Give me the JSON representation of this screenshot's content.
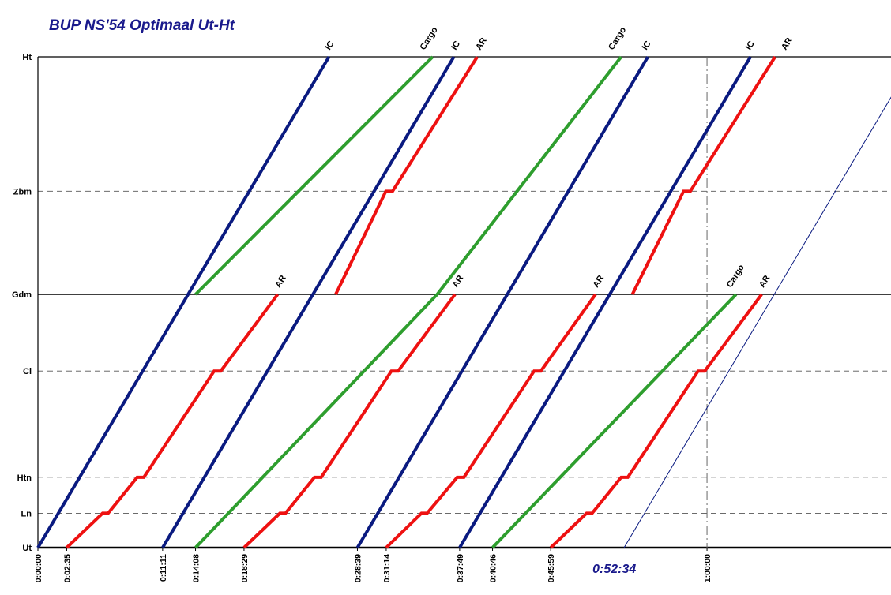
{
  "chart_data": {
    "type": "line",
    "title": "BUP NS'54 Optimaal Ut-Ht",
    "stations": [
      {
        "name": "Ht",
        "km": 0,
        "style": "solid"
      },
      {
        "name": "Zbm",
        "km": 8.6,
        "style": "dashed"
      },
      {
        "name": "Gdm",
        "km": 15.2,
        "style": "solid"
      },
      {
        "name": "Cl",
        "km": 20.1,
        "style": "dashed"
      },
      {
        "name": "Htn",
        "km": 26.9,
        "style": "dashed"
      },
      {
        "name": "Ln",
        "km": 29.2,
        "style": "dashed"
      },
      {
        "name": "Ut",
        "km": 31.4,
        "style": "solid"
      }
    ],
    "x_range_minutes": [
      0,
      76.5
    ],
    "x_ticks": [
      {
        "label": "0:00:00",
        "minutes": 0
      },
      {
        "label": "0:02:35",
        "minutes": 2.583
      },
      {
        "label": "0:11:11",
        "minutes": 11.183
      },
      {
        "label": "0:14:08",
        "minutes": 14.133
      },
      {
        "label": "0:18:29",
        "minutes": 18.483
      },
      {
        "label": "0:28:39",
        "minutes": 28.65
      },
      {
        "label": "0:31:14",
        "minutes": 31.233
      },
      {
        "label": "0:37:49",
        "minutes": 37.817
      },
      {
        "label": "0:40:46",
        "minutes": 40.767
      },
      {
        "label": "0:45:59",
        "minutes": 45.983
      },
      {
        "label": "1:00:00",
        "minutes": 60
      }
    ],
    "highlight_label": "0:52:34",
    "highlight_minutes": 52.567,
    "reference_line_minutes": 60,
    "colors": {
      "IC": "#0a1a80",
      "AR": "#ee1111",
      "Cargo": "#2e9e2e",
      "axis": "#000000",
      "title": "#1a1a8c"
    },
    "series": [
      {
        "name": "IC",
        "kind": "IC",
        "points": [
          [
            0.0,
            "Ut"
          ],
          [
            26.1,
            "Ht"
          ]
        ]
      },
      {
        "name": "IC",
        "kind": "IC",
        "points": [
          [
            11.183,
            "Ut"
          ],
          [
            37.3,
            "Ht"
          ]
        ]
      },
      {
        "name": "IC",
        "kind": "IC",
        "points": [
          [
            28.65,
            "Ut"
          ],
          [
            54.7,
            "Ht"
          ]
        ]
      },
      {
        "name": "IC",
        "kind": "IC",
        "points": [
          [
            37.817,
            "Ut"
          ],
          [
            63.9,
            "Ht"
          ]
        ]
      },
      {
        "name": "IC",
        "kind": "IC-thin",
        "points": [
          [
            52.567,
            "Ut"
          ],
          [
            78.65,
            "Ht"
          ]
        ]
      },
      {
        "name": "AR",
        "kind": "AR",
        "points": [
          [
            2.583,
            "Ut"
          ],
          [
            5.8,
            "Ln"
          ],
          [
            6.3,
            "Ln"
          ],
          [
            8.9,
            "Htn"
          ],
          [
            9.5,
            "Htn"
          ],
          [
            15.8,
            "Cl"
          ],
          [
            16.4,
            "Cl"
          ],
          [
            21.5,
            "Gdm"
          ]
        ]
      },
      {
        "name": "AR",
        "kind": "AR",
        "points": [
          [
            18.483,
            "Ut"
          ],
          [
            21.7,
            "Ln"
          ],
          [
            22.2,
            "Ln"
          ],
          [
            24.8,
            "Htn"
          ],
          [
            25.4,
            "Htn"
          ],
          [
            31.7,
            "Cl"
          ],
          [
            32.3,
            "Cl"
          ],
          [
            37.4,
            "Gdm"
          ]
        ]
      },
      {
        "name": "AR",
        "kind": "AR",
        "points": [
          [
            31.233,
            "Ut"
          ],
          [
            34.4,
            "Ln"
          ],
          [
            34.9,
            "Ln"
          ],
          [
            37.6,
            "Htn"
          ],
          [
            38.2,
            "Htn"
          ],
          [
            44.5,
            "Cl"
          ],
          [
            45.1,
            "Cl"
          ],
          [
            50.0,
            "Gdm"
          ]
        ]
      },
      {
        "name": "AR",
        "kind": "AR",
        "points": [
          [
            45.983,
            "Ut"
          ],
          [
            49.2,
            "Ln"
          ],
          [
            49.7,
            "Ln"
          ],
          [
            52.3,
            "Htn"
          ],
          [
            52.9,
            "Htn"
          ],
          [
            59.2,
            "Cl"
          ],
          [
            59.8,
            "Cl"
          ],
          [
            64.9,
            "Gdm"
          ]
        ]
      },
      {
        "name": "AR",
        "kind": "AR",
        "points": [
          [
            26.7,
            "Gdm"
          ],
          [
            31.2,
            "Zbm"
          ],
          [
            31.8,
            "Zbm"
          ],
          [
            39.4,
            "Ht"
          ]
        ]
      },
      {
        "name": "AR",
        "kind": "AR",
        "points": [
          [
            53.3,
            "Gdm"
          ],
          [
            57.9,
            "Zbm"
          ],
          [
            58.5,
            "Zbm"
          ],
          [
            66.1,
            "Ht"
          ]
        ]
      },
      {
        "name": "Cargo",
        "kind": "Cargo",
        "points": [
          [
            14.133,
            "Gdm"
          ],
          [
            35.4,
            "Ht"
          ]
        ]
      },
      {
        "name": "Cargo",
        "kind": "Cargo",
        "points": [
          [
            14.133,
            "Ut"
          ],
          [
            35.8,
            "Gdm"
          ],
          [
            52.3,
            "Ht"
          ]
        ]
      },
      {
        "name": "Cargo",
        "kind": "Cargo",
        "points": [
          [
            40.767,
            "Ut"
          ],
          [
            62.6,
            "Gdm"
          ]
        ]
      }
    ],
    "labels": [
      {
        "text": "IC",
        "minutes": 26.3,
        "station": "Ht"
      },
      {
        "text": "Cargo",
        "minutes": 34.8,
        "station": "Ht"
      },
      {
        "text": "IC",
        "minutes": 37.6,
        "station": "Ht"
      },
      {
        "text": "AR",
        "minutes": 39.8,
        "station": "Ht"
      },
      {
        "text": "Cargo",
        "minutes": 51.7,
        "station": "Ht"
      },
      {
        "text": "IC",
        "minutes": 54.7,
        "station": "Ht"
      },
      {
        "text": "IC",
        "minutes": 64.0,
        "station": "Ht"
      },
      {
        "text": "AR",
        "minutes": 67.2,
        "station": "Ht"
      },
      {
        "text": "IC",
        "minutes": 78.9,
        "station": "Ht"
      },
      {
        "text": "AR",
        "minutes": 21.8,
        "station": "Gdm"
      },
      {
        "text": "AR",
        "minutes": 37.7,
        "station": "Gdm"
      },
      {
        "text": "AR",
        "minutes": 50.3,
        "station": "Gdm"
      },
      {
        "text": "Cargo",
        "minutes": 62.3,
        "station": "Gdm"
      },
      {
        "text": "AR",
        "minutes": 65.2,
        "station": "Gdm"
      }
    ],
    "grid": "horizontal lines at stations, vertical dash-dot reference at 1:00:00"
  }
}
